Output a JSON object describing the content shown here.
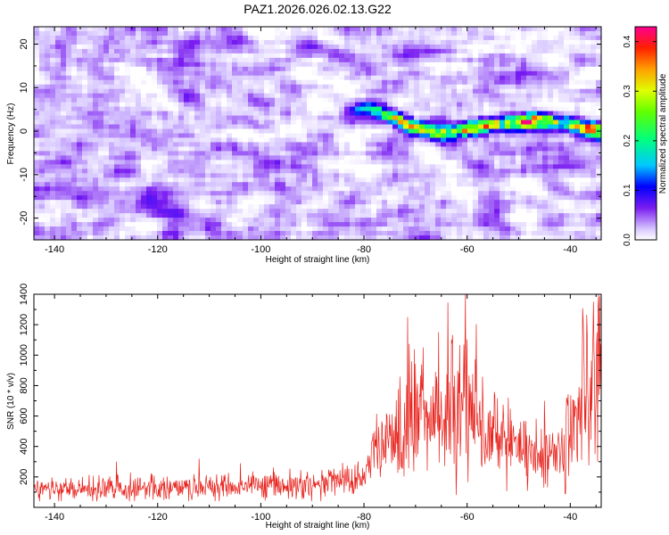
{
  "chart_data": [
    {
      "type": "heatmap",
      "title": "PAZ1.2026.026.02.13.G22",
      "xlabel": "Height of straight line (km)",
      "ylabel": "Frequency (Hz)",
      "xlim": [
        -144,
        -34
      ],
      "ylim": [
        -25,
        24
      ],
      "xticks": [
        -140,
        -120,
        -100,
        -80,
        -60,
        -40
      ],
      "yticks": [
        -20,
        -10,
        0,
        10,
        20
      ],
      "colorbar": {
        "label": "Normalized spectral amplitude",
        "range": [
          0,
          0.43
        ],
        "ticks": [
          0,
          0.1,
          0.2,
          0.3,
          0.4
        ]
      },
      "features": [
        {
          "desc": "signal ridge",
          "points": [
            [
              -80,
              5
            ],
            [
              -76,
              4
            ],
            [
              -72,
              1.5
            ],
            [
              -66,
              -0.5
            ],
            [
              -60,
              0.5
            ],
            [
              -54,
              1.5
            ],
            [
              -47,
              2.5
            ],
            [
              -42,
              2
            ],
            [
              -36,
              0.5
            ],
            [
              -34,
              0
            ]
          ],
          "peak_values": [
            0.12,
            0.2,
            0.27,
            0.18,
            0.28,
            0.24,
            0.38,
            0.2,
            0.28,
            0.22
          ]
        }
      ]
    },
    {
      "type": "line",
      "xlabel": "Height of straight line (km)",
      "ylabel": "SNR (10 * v/v)",
      "xlim": [
        -144,
        -34
      ],
      "ylim": [
        0,
        1400
      ],
      "xticks": [
        -140,
        -120,
        -100,
        -80,
        -60,
        -40
      ],
      "yticks": [
        200,
        400,
        600,
        800,
        1000,
        1200,
        1400
      ],
      "color": "#e8241e",
      "envelope": [
        {
          "x": -144,
          "mean": 120,
          "spread": 50
        },
        {
          "x": -130,
          "mean": 120,
          "spread": 55
        },
        {
          "x": -110,
          "mean": 135,
          "spread": 55
        },
        {
          "x": -90,
          "mean": 150,
          "spread": 60
        },
        {
          "x": -80,
          "mean": 200,
          "spread": 80
        },
        {
          "x": -77,
          "mean": 380,
          "spread": 140
        },
        {
          "x": -73,
          "mean": 550,
          "spread": 260
        },
        {
          "x": -66,
          "mean": 630,
          "spread": 300
        },
        {
          "x": -60,
          "mean": 720,
          "spread": 380
        },
        {
          "x": -57,
          "mean": 500,
          "spread": 230
        },
        {
          "x": -50,
          "mean": 420,
          "spread": 160
        },
        {
          "x": -42,
          "mean": 350,
          "spread": 140
        },
        {
          "x": -38,
          "mean": 700,
          "spread": 300
        },
        {
          "x": -34,
          "mean": 850,
          "spread": 380
        }
      ],
      "peaks": [
        {
          "x": -60.3,
          "y": 1400
        },
        {
          "x": -71.5,
          "y": 1250
        },
        {
          "x": -65.5,
          "y": 1150
        },
        {
          "x": -68.5,
          "y": 1050
        },
        {
          "x": -63,
          "y": 1100
        },
        {
          "x": -35.5,
          "y": 1350
        },
        {
          "x": -37.5,
          "y": 1230
        },
        {
          "x": -34.8,
          "y": 1150
        },
        {
          "x": -75.5,
          "y": 600
        },
        {
          "x": -52,
          "y": 720
        },
        {
          "x": -45,
          "y": 700
        },
        {
          "x": -128,
          "y": 300
        },
        {
          "x": -112,
          "y": 320
        },
        {
          "x": -104,
          "y": 290
        }
      ]
    }
  ]
}
